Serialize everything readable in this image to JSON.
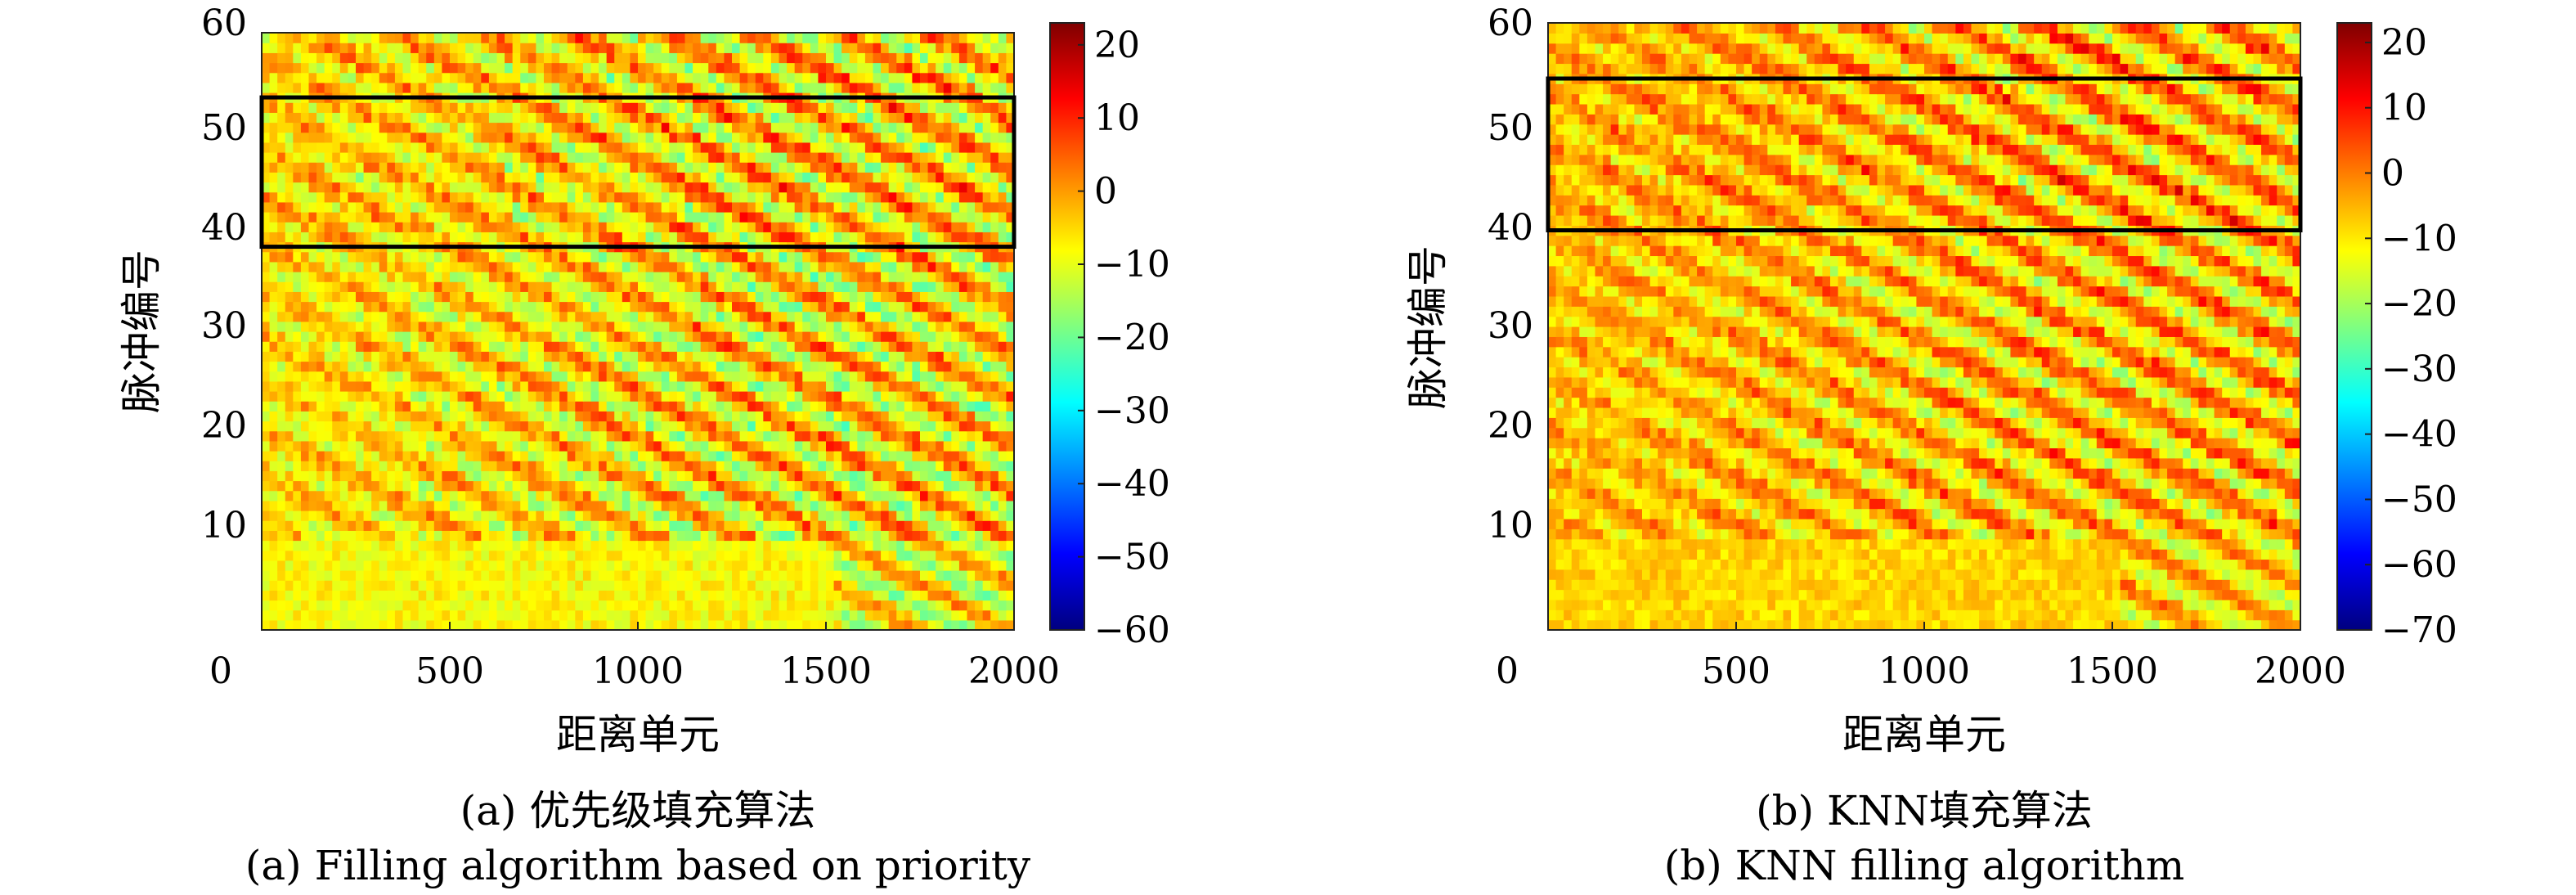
{
  "figure": {
    "panels": [
      {
        "caption_zh": "(a) 优先级填充算法",
        "caption_en": "(a) Filling algorithm based on priority"
      },
      {
        "caption_zh": "(b) KNN填充算法",
        "caption_en": "(b) KNN filling algorithm"
      }
    ]
  },
  "chart_data": [
    {
      "type": "heatmap",
      "title": "",
      "xlabel": "距离单元",
      "ylabel": "脉冲编号",
      "xlim": [
        0,
        2000
      ],
      "ylim": [
        0,
        60
      ],
      "x_ticks": [
        "0",
        "500",
        "1000",
        "1500",
        "2000"
      ],
      "y_ticks": [
        "10",
        "20",
        "30",
        "40",
        "50",
        "60"
      ],
      "colorbar": {
        "colormap": "jet",
        "range": [
          -60,
          23
        ],
        "ticks": [
          "20",
          "10",
          "0",
          "−10",
          "−20",
          "−30",
          "−40",
          "−50",
          "−60"
        ],
        "tick_values": [
          20,
          10,
          0,
          -10,
          -20,
          -30,
          -40,
          -50,
          -60
        ]
      },
      "highlight_box": {
        "x_range": [
          0,
          2000
        ],
        "y_range": [
          38.5,
          53.5
        ]
      },
      "grid": false,
      "seed": 7
    },
    {
      "type": "heatmap",
      "title": "",
      "xlabel": "距离单元",
      "ylabel": "脉冲编号",
      "xlim": [
        0,
        2000
      ],
      "ylim": [
        0,
        60
      ],
      "x_ticks": [
        "0",
        "500",
        "1000",
        "1500",
        "2000"
      ],
      "y_ticks": [
        "10",
        "20",
        "30",
        "40",
        "50",
        "60"
      ],
      "colorbar": {
        "colormap": "jet",
        "range": [
          -70,
          23
        ],
        "ticks": [
          "20",
          "10",
          "0",
          "−10",
          "−20",
          "−30",
          "−40",
          "−50",
          "−60",
          "−70"
        ],
        "tick_values": [
          20,
          10,
          0,
          -10,
          -20,
          -30,
          -40,
          -50,
          -60,
          -70
        ]
      },
      "highlight_box": {
        "x_range": [
          0,
          2000
        ],
        "y_range": [
          39.5,
          54.5
        ]
      },
      "grid": false,
      "seed": 19
    }
  ]
}
